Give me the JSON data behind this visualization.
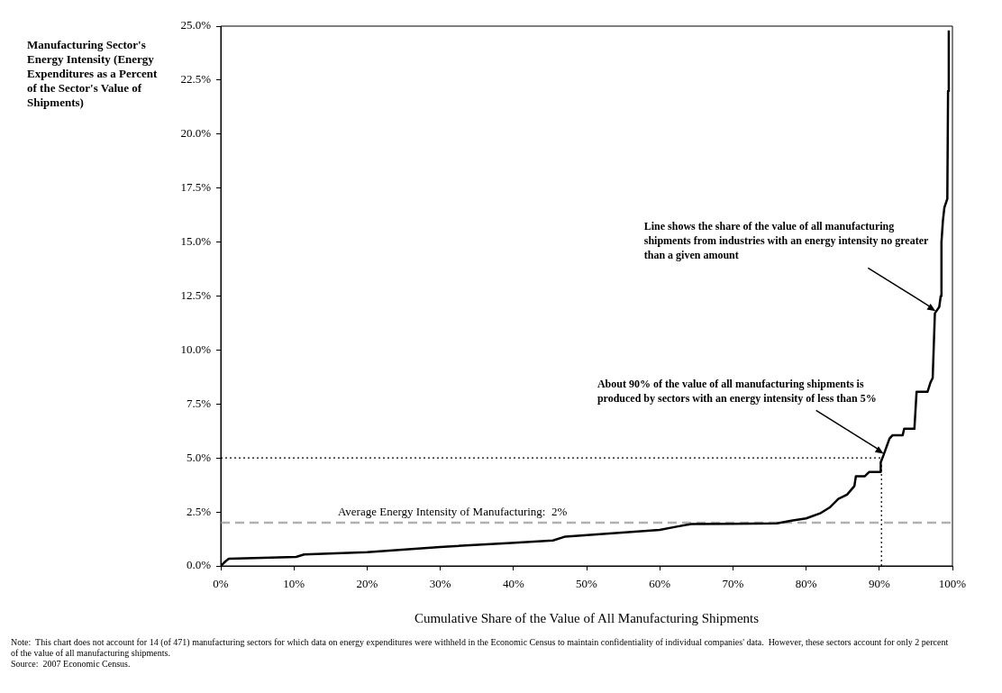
{
  "chart_data": {
    "type": "line",
    "xlabel": "Cumulative Share of the Value of All Manufacturing Shipments",
    "ylabel": "Manufacturing Sector's Energy Intensity (Energy Expenditures as a Percent of the Sector's Value of Shipments)",
    "xlim": [
      0,
      100
    ],
    "ylim": [
      0,
      25
    ],
    "xticks": [
      {
        "value": 0,
        "label": "0%"
      },
      {
        "value": 10,
        "label": "10%"
      },
      {
        "value": 20,
        "label": "20%"
      },
      {
        "value": 30,
        "label": "30%"
      },
      {
        "value": 40,
        "label": "40%"
      },
      {
        "value": 50,
        "label": "50%"
      },
      {
        "value": 60,
        "label": "60%"
      },
      {
        "value": 70,
        "label": "70%"
      },
      {
        "value": 80,
        "label": "80%"
      },
      {
        "value": 90,
        "label": "90%"
      },
      {
        "value": 100,
        "label": "100%"
      }
    ],
    "yticks": [
      {
        "value": 0,
        "label": "0.0%"
      },
      {
        "value": 2.5,
        "label": "2.5%"
      },
      {
        "value": 5,
        "label": "5.0%"
      },
      {
        "value": 7.5,
        "label": "7.5%"
      },
      {
        "value": 10,
        "label": "10.0%"
      },
      {
        "value": 12.5,
        "label": "12.5%"
      },
      {
        "value": 15,
        "label": "15.0%"
      },
      {
        "value": 17.5,
        "label": "17.5%"
      },
      {
        "value": 20,
        "label": "20.0%"
      },
      {
        "value": 22.5,
        "label": "22.5%"
      },
      {
        "value": 25,
        "label": "25.0%"
      }
    ],
    "series": [
      {
        "color": "#000000",
        "x": [
          0,
          0.7,
          1.1,
          10.3,
          11.4,
          20,
          30,
          39.7,
          45.4,
          47.1,
          60,
          62,
          64.3,
          70,
          76,
          78,
          80,
          82,
          83.2,
          84.4,
          85.6,
          86.6,
          86.8,
          88,
          88.6,
          90.2,
          90.2,
          90.6,
          91.4,
          91.8,
          93.2,
          93.4,
          94.8,
          95.1,
          96.6,
          97,
          97.3,
          97.6,
          98.2,
          98.4,
          98.5,
          98.7,
          98.9,
          99.3,
          99.4,
          99.5
        ],
        "values": [
          0,
          0.23,
          0.33,
          0.42,
          0.53,
          0.64,
          0.88,
          1.06,
          1.18,
          1.36,
          1.67,
          1.8,
          1.94,
          1.95,
          1.97,
          2.1,
          2.2,
          2.45,
          2.7,
          3.1,
          3.3,
          3.7,
          4.15,
          4.15,
          4.35,
          4.35,
          4.8,
          5.15,
          5.9,
          6.05,
          6.05,
          6.35,
          6.35,
          8.07,
          8.07,
          8.5,
          8.7,
          11.7,
          12,
          12.5,
          15,
          16,
          16.6,
          17,
          22,
          24.8
        ]
      }
    ],
    "ref_lines": [
      {
        "axis": "y",
        "value": 2,
        "label": "Average Energy Intensity of Manufacturing:  2%",
        "color": "#b0b0b0",
        "line_style": "dashed"
      },
      {
        "axis": "y",
        "value": 5,
        "color": "#000000",
        "line_style": "dotted"
      },
      {
        "axis": "x",
        "value": 90.3,
        "color": "#000000",
        "line_style": "dotted"
      }
    ],
    "annotations": [
      {
        "text": "Line shows the share of the value of all manufacturing shipments from industries with an energy intensity no greater than a given amount",
        "x": 97.7,
        "y": 11.8
      },
      {
        "text": "About 90% of the value of all manufacturing shipments is produced by sectors with an energy intensity of less than 5%",
        "x": 90.6,
        "y": 5.2
      },
      "Note:  This chart does not account for 14 (of 471) manufacturing sectors for which data on energy expenditures were withheld in the Economic Census to maintain confidentiality of individual companies' data.  However, these sectors account for only 2 percent of the value of all manufacturing shipments.",
      "Source:  2007 Economic Census."
    ],
    "grid": false,
    "legend": false,
    "marker": "none",
    "line_style": "solid"
  }
}
